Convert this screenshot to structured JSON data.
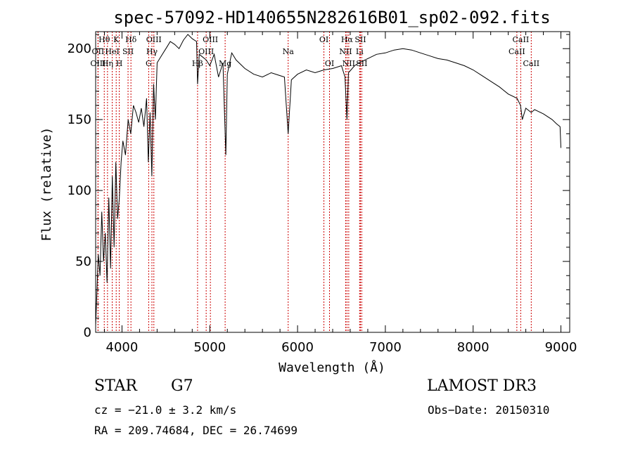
{
  "chart_data": {
    "type": "line",
    "title": "spec-57092-HD140655N282616B01_sp02-092.fits",
    "xlabel": "Wavelength (Å)",
    "ylabel": "Flux (relative)",
    "xlim": [
      3700,
      9100
    ],
    "ylim": [
      0,
      212
    ],
    "x_ticks": [
      4000,
      5000,
      6000,
      7000,
      8000,
      9000
    ],
    "y_ticks": [
      0,
      50,
      100,
      150,
      200
    ],
    "series": [
      {
        "name": "flux",
        "color": "#000000",
        "x": [
          3700,
          3710,
          3730,
          3750,
          3770,
          3790,
          3810,
          3830,
          3850,
          3870,
          3890,
          3910,
          3930,
          3950,
          3970,
          3990,
          4010,
          4040,
          4070,
          4100,
          4130,
          4160,
          4190,
          4220,
          4250,
          4280,
          4300,
          4320,
          4340,
          4360,
          4380,
          4400,
          4450,
          4500,
          4550,
          4600,
          4650,
          4700,
          4750,
          4800,
          4850,
          4861,
          4880,
          4920,
          4960,
          5000,
          5050,
          5100,
          5150,
          5170,
          5183,
          5200,
          5250,
          5300,
          5400,
          5500,
          5600,
          5700,
          5800,
          5850,
          5893,
          5930,
          6000,
          6100,
          6200,
          6300,
          6400,
          6500,
          6540,
          6563,
          6580,
          6650,
          6700,
          6800,
          6900,
          7000,
          7100,
          7200,
          7300,
          7400,
          7500,
          7600,
          7700,
          7800,
          7900,
          8000,
          8100,
          8200,
          8300,
          8400,
          8500,
          8540,
          8560,
          8600,
          8662,
          8700,
          8800,
          8900,
          8950,
          8990,
          9000
        ],
        "values": [
          5,
          20,
          55,
          40,
          85,
          50,
          70,
          35,
          95,
          45,
          110,
          60,
          120,
          80,
          95,
          120,
          135,
          125,
          150,
          140,
          160,
          155,
          148,
          158,
          145,
          165,
          120,
          155,
          110,
          175,
          150,
          190,
          195,
          200,
          205,
          203,
          200,
          206,
          210,
          207,
          205,
          175,
          196,
          194,
          192,
          188,
          196,
          180,
          190,
          150,
          125,
          182,
          197,
          192,
          186,
          182,
          180,
          183,
          181,
          180,
          140,
          178,
          182,
          185,
          183,
          185,
          186,
          188,
          180,
          150,
          183,
          188,
          190,
          193,
          196,
          197,
          199,
          200,
          199,
          197,
          195,
          193,
          192,
          190,
          188,
          185,
          181,
          177,
          173,
          168,
          165,
          160,
          150,
          158,
          155,
          157,
          154,
          150,
          147,
          145,
          130
        ]
      }
    ],
    "lines": [
      {
        "name": "Hθ",
        "x": 3798,
        "row": 1
      },
      {
        "name": "OII",
        "x": 3727,
        "row": 2
      },
      {
        "name": "OIII",
        "x": 3727,
        "row": 3
      },
      {
        "name": "Hη",
        "x": 3835,
        "row": 3
      },
      {
        "name": "HeI",
        "x": 3889,
        "row": 2
      },
      {
        "name": "K",
        "x": 3934,
        "row": 1
      },
      {
        "name": "H",
        "x": 3969,
        "row": 3
      },
      {
        "name": "SII",
        "x": 4069,
        "row": 2
      },
      {
        "name": "Hδ",
        "x": 4102,
        "row": 1
      },
      {
        "name": "G",
        "x": 4304,
        "row": 3
      },
      {
        "name": "Hγ",
        "x": 4341,
        "row": 2
      },
      {
        "name": "OIII",
        "x": 4363,
        "row": 1
      },
      {
        "name": "Hβ",
        "x": 4861,
        "row": 3
      },
      {
        "name": "OIII",
        "x": 4959,
        "row": 2
      },
      {
        "name": "OIII",
        "x": 5007,
        "row": 1
      },
      {
        "name": "Mg",
        "x": 5175,
        "row": 3
      },
      {
        "name": "Na",
        "x": 5893,
        "row": 2
      },
      {
        "name": "OI",
        "x": 6300,
        "row": 1
      },
      {
        "name": "OI",
        "x": 6364,
        "row": 3
      },
      {
        "name": "NII",
        "x": 6548,
        "row": 2
      },
      {
        "name": "Hα",
        "x": 6563,
        "row": 1
      },
      {
        "name": "NII",
        "x": 6583,
        "row": 3
      },
      {
        "name": "SII",
        "x": 6716,
        "row": 1
      },
      {
        "name": "Li",
        "x": 6707,
        "row": 2
      },
      {
        "name": "SII",
        "x": 6731,
        "row": 3
      },
      {
        "name": "CaII",
        "x": 8498,
        "row": 2
      },
      {
        "name": "CaII",
        "x": 8542,
        "row": 1
      },
      {
        "name": "CaII",
        "x": 8662,
        "row": 3
      }
    ]
  },
  "info": {
    "class": "STAR",
    "subclass": "G7",
    "survey": "LAMOST DR3",
    "cz": "cz = −21.0 ± 3.2 km/s",
    "obs_date": "Obs−Date: 20150310",
    "radec": "RA = 209.74684, DEC =  26.74699"
  },
  "colors": {
    "line_marker": "#cc0000",
    "spectrum": "#000000",
    "axis": "#000000"
  }
}
